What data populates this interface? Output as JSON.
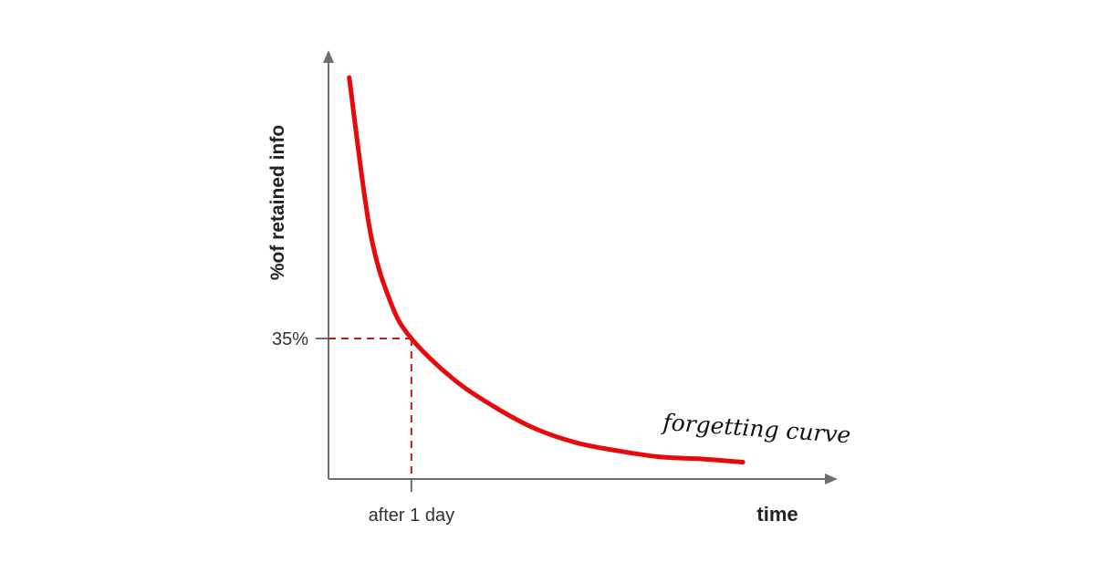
{
  "colors": {
    "curve": "#e8090d",
    "reference_lines": "#c0191b",
    "axes": "#6e6e6e"
  },
  "chart_data": {
    "type": "line",
    "title": "",
    "xlabel": "time",
    "ylabel": "%of retained info",
    "x_ticks": [
      {
        "x": 1,
        "label": "after 1 day"
      }
    ],
    "y_ticks": [
      {
        "y": 35,
        "label": "35%"
      }
    ],
    "xlim": [
      0,
      6
    ],
    "ylim": [
      0,
      100
    ],
    "grid": false,
    "series": [
      {
        "name": "",
        "style": "smooth",
        "points": [
          {
            "x": 0.25,
            "y": 100
          },
          {
            "x": 0.5,
            "y": 62
          },
          {
            "x": 0.75,
            "y": 44
          },
          {
            "x": 1.0,
            "y": 35
          },
          {
            "x": 1.5,
            "y": 25
          },
          {
            "x": 2.0,
            "y": 18
          },
          {
            "x": 2.5,
            "y": 12.5
          },
          {
            "x": 3.0,
            "y": 9
          },
          {
            "x": 3.5,
            "y": 7
          },
          {
            "x": 4.0,
            "y": 5.5
          },
          {
            "x": 4.5,
            "y": 5
          },
          {
            "x": 5.0,
            "y": 4.2
          }
        ]
      }
    ],
    "reference_point": {
      "x": 1,
      "y": 35
    },
    "annotations": [
      {
        "text": "forgetting curve",
        "near_x": 4.6,
        "near_y": 14
      }
    ]
  }
}
